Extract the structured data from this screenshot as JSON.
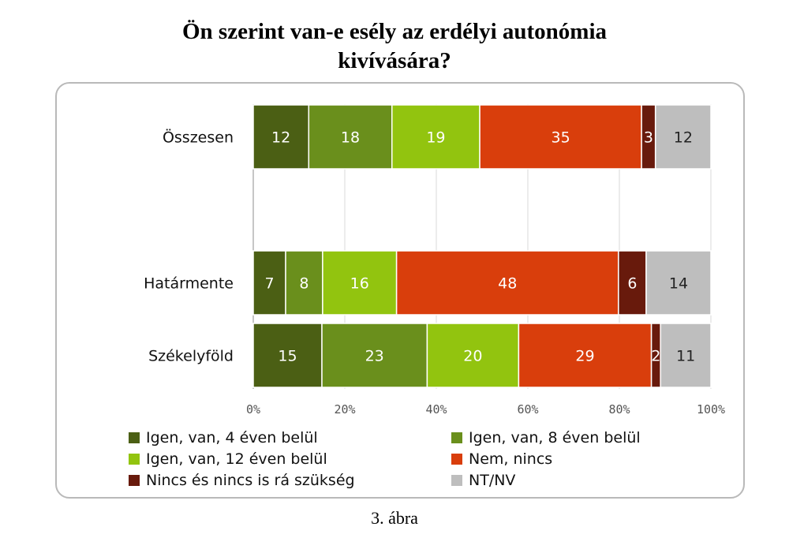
{
  "title_lines": [
    "Ön szerint van-e esély az erdélyi autonómia",
    "kivívására?"
  ],
  "caption": "3. ábra",
  "chart_data": {
    "type": "bar",
    "orientation": "horizontal",
    "stacked": "percent",
    "categories": [
      "Összesen",
      "Határmente",
      "Székelyföld"
    ],
    "series": [
      {
        "name": "Igen, van, 4 éven belül",
        "values": [
          12,
          7,
          15
        ],
        "color": "#4b5f14"
      },
      {
        "name": "Igen, van, 8 éven belül",
        "values": [
          18,
          8,
          23
        ],
        "color": "#6a8f1c"
      },
      {
        "name": "Igen, van, 12 éven belül",
        "values": [
          19,
          16,
          20
        ],
        "color": "#92c40f"
      },
      {
        "name": "Nem, nincs",
        "values": [
          35,
          48,
          29
        ],
        "color": "#d93e0c"
      },
      {
        "name": "Nincs és nincs is rá szükség",
        "values": [
          3,
          6,
          2
        ],
        "color": "#681a0c"
      },
      {
        "name": "NT/NV",
        "values": [
          12,
          14,
          11
        ],
        "color": "#bebebe"
      }
    ],
    "x_ticks": [
      "0%",
      "20%",
      "40%",
      "60%",
      "80%",
      "100%"
    ],
    "xlim": [
      0,
      100
    ],
    "grid": true,
    "legend_position": "bottom"
  }
}
